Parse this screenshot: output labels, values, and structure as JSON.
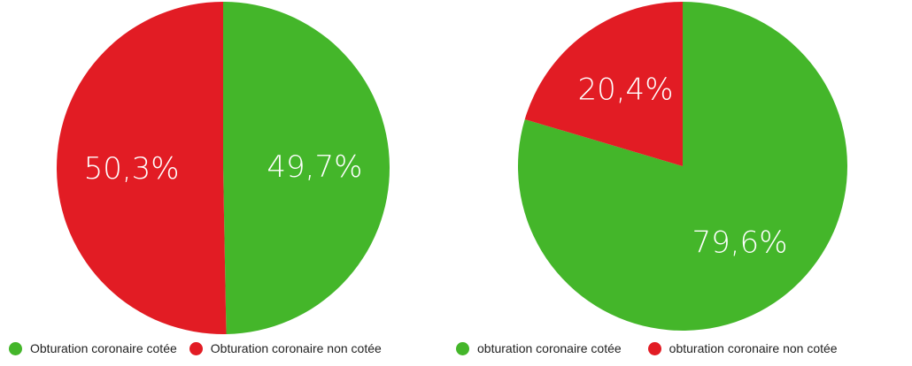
{
  "colors": {
    "green": "#44b62a",
    "red": "#e21c24"
  },
  "chart_data": [
    {
      "type": "pie",
      "categories": [
        "Obturation coronaire cotée",
        "Obturation coronaire non cotée"
      ],
      "values": [
        49.7,
        50.3
      ],
      "labels": [
        "49,7%",
        "50,3%"
      ],
      "colors": [
        "#44b62a",
        "#e21c24"
      ],
      "start_angle_deg": 0,
      "direction": "clockwise",
      "legend": "bottom"
    },
    {
      "type": "pie",
      "categories": [
        "obturation coronaire cotée",
        "obturation coronaire non cotée"
      ],
      "values": [
        79.6,
        20.4
      ],
      "labels": [
        "79,6%",
        "20,4%"
      ],
      "colors": [
        "#44b62a",
        "#e21c24"
      ],
      "start_angle_deg": 0,
      "direction": "clockwise",
      "legend": "bottom"
    }
  ]
}
